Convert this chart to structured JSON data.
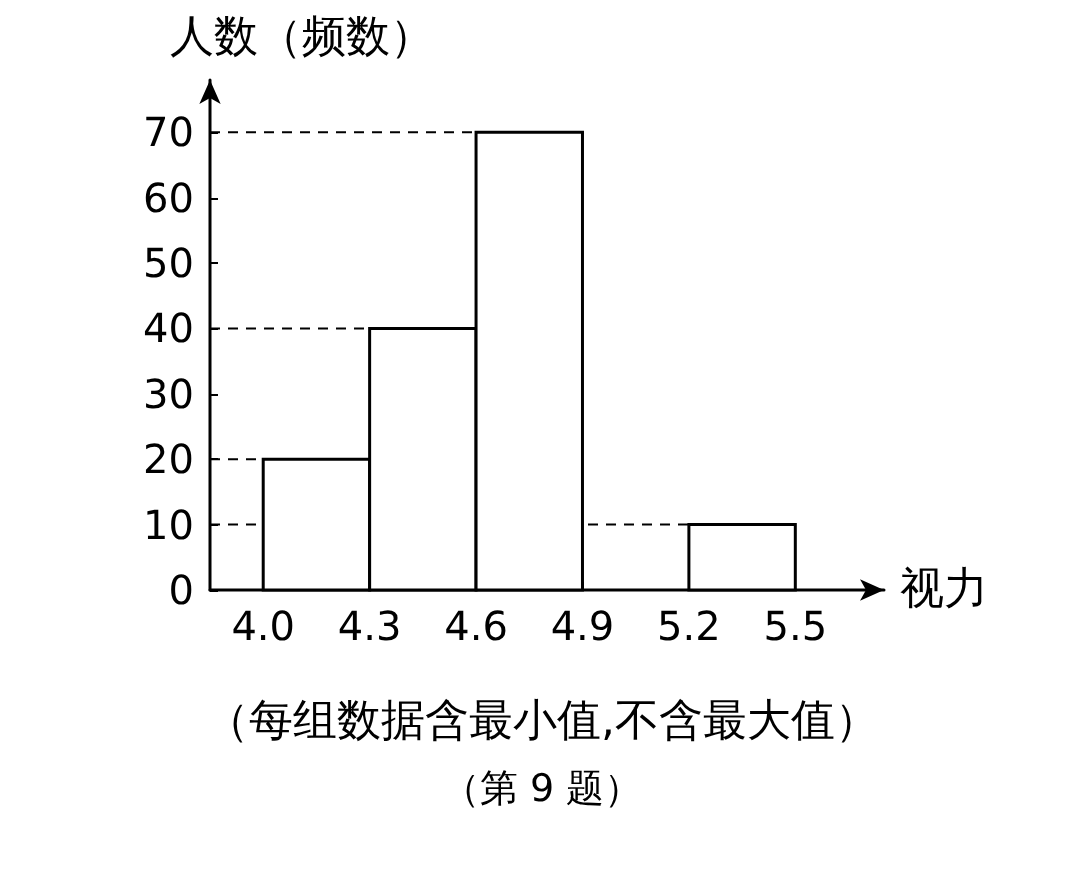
{
  "chart_data": {
    "type": "histogram",
    "ylabel": "人数（频数）",
    "xlabel": "视力",
    "bins": [
      4.0,
      4.3,
      4.6,
      4.9,
      5.2,
      5.5
    ],
    "values": [
      20,
      40,
      70,
      null,
      10
    ],
    "color": "#ffffff",
    "xlim": [
      3.85,
      5.75
    ],
    "xticks": [
      {
        "value": 4.0,
        "label": "4.0"
      },
      {
        "value": 4.3,
        "label": "4.3"
      },
      {
        "value": 4.6,
        "label": "4.6"
      },
      {
        "value": 4.9,
        "label": "4.9"
      },
      {
        "value": 5.2,
        "label": "5.2"
      },
      {
        "value": 5.5,
        "label": "5.5"
      }
    ],
    "ylim": [
      0,
      78
    ],
    "yticks": [
      0,
      10,
      20,
      30,
      40,
      50,
      60,
      70
    ],
    "ref_lines": [
      {
        "axis": "y",
        "value": 10,
        "line_style": "dashed"
      },
      {
        "axis": "y",
        "value": 20,
        "line_style": "dashed"
      },
      {
        "axis": "y",
        "value": 40,
        "line_style": "dashed"
      },
      {
        "axis": "y",
        "value": 70,
        "line_style": "dashed"
      }
    ],
    "grid": false,
    "annotations": [
      "（每组数据含最小值,不含最大值）",
      "（第 9 题）"
    ]
  }
}
